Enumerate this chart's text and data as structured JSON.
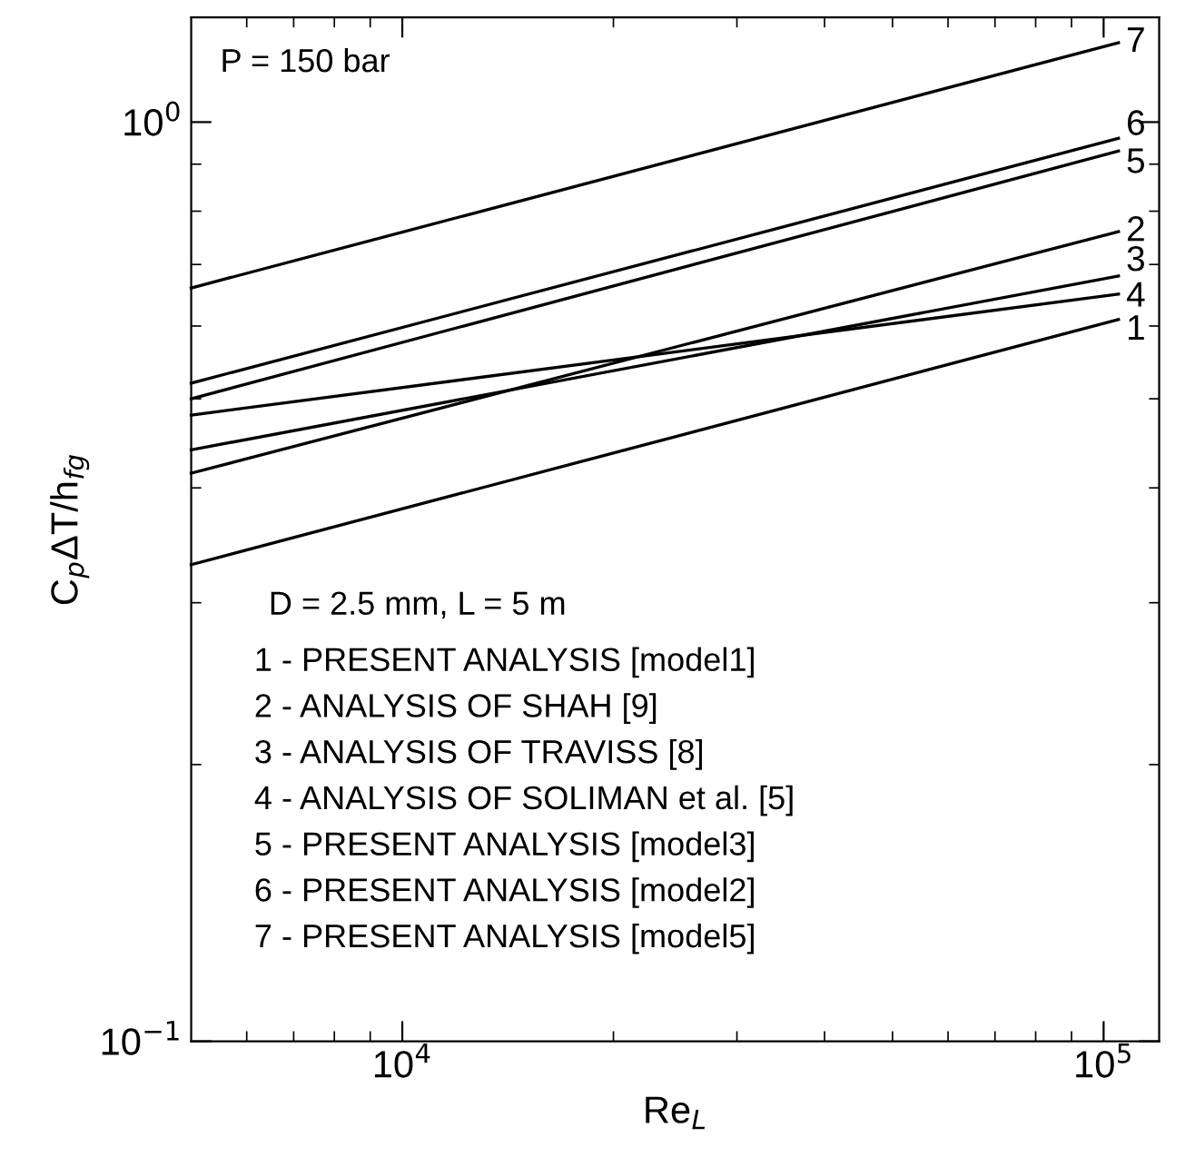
{
  "chart_data": {
    "type": "line",
    "log": "xy",
    "xlabel": "Re$_{L}$",
    "ylabel": "C$_{p}$ΔT/h$_{fg}$",
    "xlim": [
      5000,
      120000
    ],
    "ylim": [
      0.1,
      1.3
    ],
    "xticks": [
      {
        "value": 6000,
        "label": null
      },
      {
        "value": 7000,
        "label": null
      },
      {
        "value": 8000,
        "label": null
      },
      {
        "value": 9000,
        "label": null
      },
      {
        "value": 10000,
        "label": "10$^{4}$"
      },
      {
        "value": 20000,
        "label": null
      },
      {
        "value": 30000,
        "label": null
      },
      {
        "value": 40000,
        "label": null
      },
      {
        "value": 50000,
        "label": null
      },
      {
        "value": 60000,
        "label": null
      },
      {
        "value": 70000,
        "label": null
      },
      {
        "value": 80000,
        "label": null
      },
      {
        "value": 90000,
        "label": null
      },
      {
        "value": 100000,
        "label": "10$^{5}$"
      }
    ],
    "yticks": [
      {
        "value": 0.1,
        "label": "10$^{−1}$"
      },
      {
        "value": 0.2,
        "label": null
      },
      {
        "value": 0.3,
        "label": null
      },
      {
        "value": 0.4,
        "label": null
      },
      {
        "value": 0.5,
        "label": null
      },
      {
        "value": 0.6,
        "label": null
      },
      {
        "value": 0.7,
        "label": null
      },
      {
        "value": 0.8,
        "label": null
      },
      {
        "value": 0.9,
        "label": null
      },
      {
        "value": 1,
        "label": "10$^{0}$"
      }
    ],
    "grid": false,
    "marker": "none",
    "line_style": "solid",
    "legend": "right",
    "legend_title": "D = 2.5 mm, L = 5 m",
    "annotations": [
      "P = 150 bar",
      "1 - PRESENT ANALYSIS [model1]",
      "2 - ANALYSIS OF SHAH [9]",
      "3 - ANALYSIS OF TRAVISS [8]",
      "4 - ANALYSIS OF SOLIMAN et al. [5]",
      "5 - PRESENT ANALYSIS [model3]",
      "6 - PRESENT ANALYSIS [model2]",
      "7 - PRESENT ANALYSIS [model5]"
    ],
    "x": [
      5000,
      105000
    ],
    "series": [
      {
        "name": "1",
        "color": "#000000",
        "values": [
          0.33,
          0.61
        ]
      },
      {
        "name": "2",
        "color": "#000000",
        "values": [
          0.415,
          0.76
        ]
      },
      {
        "name": "3",
        "color": "#000000",
        "values": [
          0.44,
          0.68
        ]
      },
      {
        "name": "4",
        "color": "#000000",
        "values": [
          0.48,
          0.65
        ]
      },
      {
        "name": "5",
        "color": "#000000",
        "values": [
          0.5,
          0.93
        ]
      },
      {
        "name": "6",
        "color": "#000000",
        "values": [
          0.52,
          0.96
        ]
      },
      {
        "name": "7",
        "color": "#000000",
        "values": [
          0.66,
          1.22
        ]
      }
    ]
  }
}
